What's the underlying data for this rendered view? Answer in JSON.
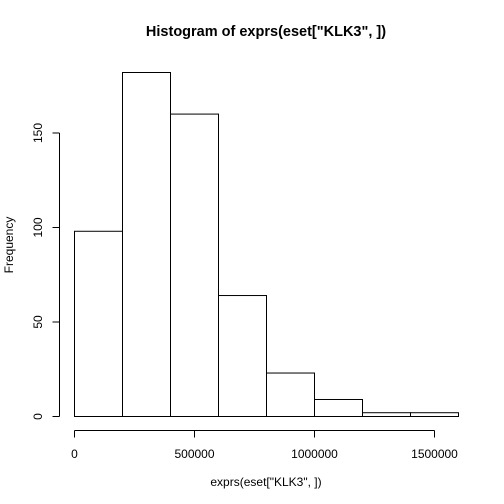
{
  "chart_data": {
    "type": "bar",
    "title": "Histogram of exprs(eset[\"KLK3\", ])",
    "xlabel": "exprs(eset[\"KLK3\", ])",
    "ylabel": "Frequency",
    "bins": [
      {
        "start": 0,
        "end": 200000,
        "count": 98
      },
      {
        "start": 200000,
        "end": 400000,
        "count": 182
      },
      {
        "start": 400000,
        "end": 600000,
        "count": 160
      },
      {
        "start": 600000,
        "end": 800000,
        "count": 64
      },
      {
        "start": 800000,
        "end": 1000000,
        "count": 23
      },
      {
        "start": 1000000,
        "end": 1200000,
        "count": 9
      },
      {
        "start": 1200000,
        "end": 1400000,
        "count": 2
      },
      {
        "start": 1400000,
        "end": 1600000,
        "count": 2
      }
    ],
    "xlim": [
      0,
      1600000
    ],
    "ylim": [
      0,
      182
    ],
    "x_ticks": [
      0,
      500000,
      1000000,
      1500000
    ],
    "x_tick_labels": [
      "0",
      "500000",
      "1000000",
      "1500000"
    ],
    "y_ticks": [
      0,
      50,
      100,
      150
    ],
    "y_tick_labels": [
      "0",
      "50",
      "100",
      "150"
    ],
    "grid": false,
    "legend": "none"
  }
}
